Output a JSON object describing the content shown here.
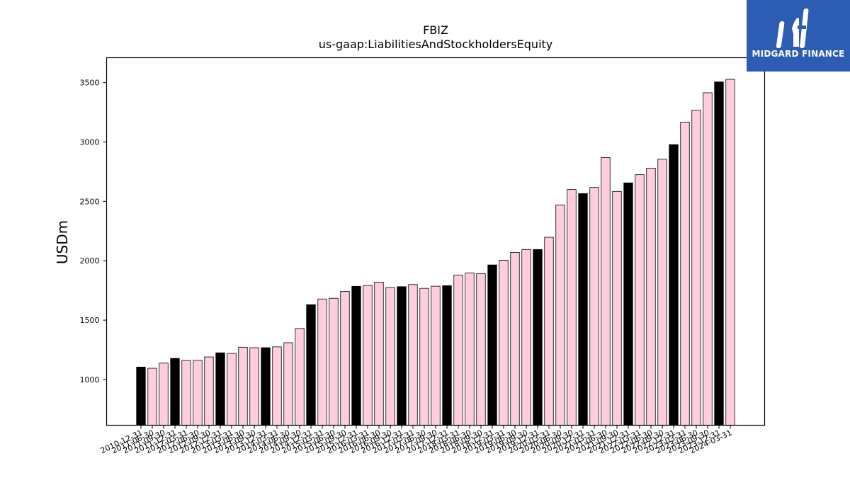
{
  "logo": {
    "text": "MIDGARD FINANCE",
    "background": "#2d5db2"
  },
  "chart_data": {
    "type": "bar",
    "title": "FBIZ",
    "subtitle": "us-gaap:LiabilitiesAndStockholdersEquity",
    "ylabel": "USDm",
    "xlabel": "",
    "ylim": [
      615,
      3710
    ],
    "yticks": [
      1000,
      1500,
      2000,
      2500,
      3000,
      3500
    ],
    "grid": false,
    "colors": {
      "year_end": "#000000",
      "quarter": "#ffcce0",
      "edge": "#000000"
    },
    "categories": [
      "2010-12-31",
      "2011-06-30",
      "2011-09-30",
      "2011-12-31",
      "2012-03-31",
      "2012-06-30",
      "2012-09-30",
      "2012-12-31",
      "2013-03-31",
      "2013-06-30",
      "2013-09-30",
      "2013-12-31",
      "2014-03-31",
      "2014-06-30",
      "2014-09-30",
      "2014-12-31",
      "2015-03-31",
      "2015-06-30",
      "2015-09-30",
      "2015-12-31",
      "2016-03-31",
      "2016-06-30",
      "2016-09-30",
      "2016-12-31",
      "2017-03-31",
      "2017-06-30",
      "2017-09-30",
      "2017-12-31",
      "2018-03-31",
      "2018-06-30",
      "2018-09-30",
      "2018-12-31",
      "2019-03-31",
      "2019-06-30",
      "2019-09-30",
      "2019-12-31",
      "2020-03-31",
      "2020-06-30",
      "2020-09-30",
      "2020-12-31",
      "2021-03-31",
      "2021-06-30",
      "2021-09-30",
      "2021-12-31",
      "2022-03-31",
      "2022-06-30",
      "2022-09-30",
      "2022-12-31",
      "2023-03-31",
      "2023-06-30",
      "2023-09-30",
      "2023-12-31",
      "2024-03-31"
    ],
    "values": [
      1105,
      1095,
      1138,
      1178,
      1160,
      1162,
      1190,
      1225,
      1220,
      1272,
      1268,
      1268,
      1275,
      1310,
      1430,
      1630,
      1678,
      1684,
      1742,
      1785,
      1792,
      1820,
      1775,
      1782,
      1800,
      1768,
      1786,
      1790,
      1880,
      1898,
      1892,
      1965,
      2005,
      2070,
      2095,
      2095,
      2198,
      2470,
      2600,
      2566,
      2618,
      2870,
      2584,
      2656,
      2725,
      2780,
      2855,
      2978,
      3168,
      3268,
      3415,
      3506,
      3528
    ]
  }
}
